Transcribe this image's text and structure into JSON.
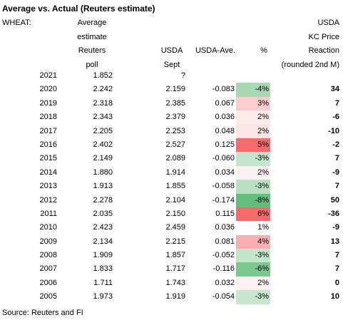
{
  "title": "Average vs. Actual (Reuters estimate)",
  "headers": {
    "wheat": "WHEAT:",
    "average_lines": [
      "Average",
      "estimate",
      "Reuters",
      "poll"
    ],
    "usda_lines": [
      "USDA",
      "Sept"
    ],
    "diff": "USDA-Ave.",
    "pct": "%",
    "kc_lines": [
      "USDA",
      "KC Price",
      "Reaction",
      "(rounded 2nd M)"
    ]
  },
  "colors": {
    "neg_strong": "#63be7b",
    "neg_medium": "#8fcf9b",
    "neg_light": "#b7dfc0",
    "pos_strong": "#f8696b",
    "pos_medium": "#f9a3a5",
    "pos_light": "#fbd2d3",
    "pos_faint": "#fdf0f0"
  },
  "rows": [
    {
      "year": "2021",
      "avg": "1.852",
      "usda": "?",
      "diff": "",
      "pct": "",
      "kc": "",
      "color": ""
    },
    {
      "year": "2020",
      "avg": "2.242",
      "usda": "2.159",
      "diff": "-0.083",
      "pct": "-4%",
      "kc": "34",
      "color": "#a9d8b4"
    },
    {
      "year": "2019",
      "avg": "2.318",
      "usda": "2.385",
      "diff": "0.067",
      "pct": "3%",
      "kc": "7",
      "color": "#fbcdcf"
    },
    {
      "year": "2018",
      "avg": "2.343",
      "usda": "2.379",
      "diff": "0.036",
      "pct": "2%",
      "kc": "-6",
      "color": "#fcebeb"
    },
    {
      "year": "2017",
      "avg": "2.205",
      "usda": "2.253",
      "diff": "0.048",
      "pct": "2%",
      "kc": "-10",
      "color": "#fce4e5"
    },
    {
      "year": "2016",
      "avg": "2.402",
      "usda": "2.527",
      "diff": "0.125",
      "pct": "5%",
      "kc": "-2",
      "color": "#f8696b"
    },
    {
      "year": "2015",
      "avg": "2.149",
      "usda": "2.089",
      "diff": "-0.060",
      "pct": "-3%",
      "kc": "7",
      "color": "#c3e5cb"
    },
    {
      "year": "2014",
      "avg": "1.880",
      "usda": "1.914",
      "diff": "0.034",
      "pct": "2%",
      "kc": "-9",
      "color": "#fdf0f0"
    },
    {
      "year": "2013",
      "avg": "1.913",
      "usda": "1.855",
      "diff": "-0.058",
      "pct": "-3%",
      "kc": "7",
      "color": "#b9e0c2"
    },
    {
      "year": "2012",
      "avg": "2.278",
      "usda": "2.104",
      "diff": "-0.174",
      "pct": "-8%",
      "kc": "50",
      "color": "#63be7b"
    },
    {
      "year": "2011",
      "avg": "2.035",
      "usda": "2.150",
      "diff": "0.115",
      "pct": "6%",
      "kc": "-36",
      "color": "#f8696b"
    },
    {
      "year": "2010",
      "avg": "2.423",
      "usda": "2.459",
      "diff": "0.036",
      "pct": "1%",
      "kc": "-9",
      "color": "#ffffff"
    },
    {
      "year": "2009",
      "avg": "2.134",
      "usda": "2.215",
      "diff": "0.081",
      "pct": "4%",
      "kc": "13",
      "color": "#f9b0b2"
    },
    {
      "year": "2008",
      "avg": "1.909",
      "usda": "1.857",
      "diff": "-0.052",
      "pct": "-3%",
      "kc": "7",
      "color": "#c3e5cb"
    },
    {
      "year": "2007",
      "avg": "1.833",
      "usda": "1.717",
      "diff": "-0.116",
      "pct": "-6%",
      "kc": "7",
      "color": "#7cc78f"
    },
    {
      "year": "2006",
      "avg": "1.711",
      "usda": "1.743",
      "diff": "0.032",
      "pct": "2%",
      "kc": "0",
      "color": "#fdf1f1"
    },
    {
      "year": "2005",
      "avg": "1.973",
      "usda": "1.919",
      "diff": "-0.054",
      "pct": "-3%",
      "kc": "10",
      "color": "#c6e6cd"
    }
  ],
  "source": "Source: Reuters and FI"
}
